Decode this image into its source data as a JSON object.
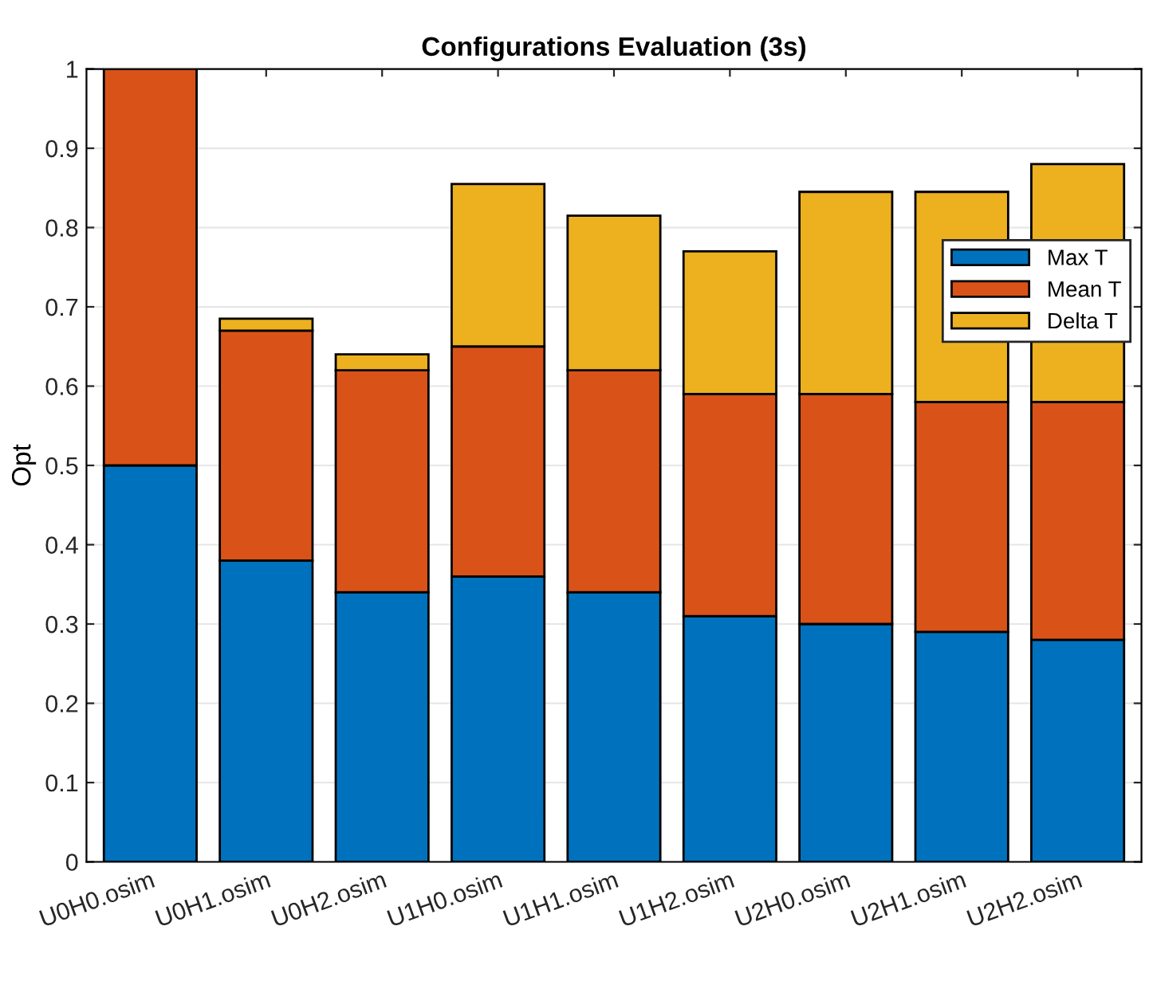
{
  "chart_data": {
    "type": "bar",
    "title": "Configurations Evaluation (3s)",
    "ylabel": "Opt",
    "categories": [
      "U0H0.osim",
      "U0H1.osim",
      "U0H2.osim",
      "U1H0.osim",
      "U1H1.osim",
      "U1H2.osim",
      "U2H0.osim",
      "U2H1.osim",
      "U2H2.osim"
    ],
    "stacked": true,
    "series": [
      {
        "name": "Max T",
        "color": "#0072bd",
        "values": [
          0.5,
          0.38,
          0.34,
          0.36,
          0.34,
          0.31,
          0.3,
          0.29,
          0.28
        ]
      },
      {
        "name": "Mean T",
        "color": "#d95319",
        "values": [
          0.5,
          0.29,
          0.28,
          0.29,
          0.28,
          0.28,
          0.29,
          0.29,
          0.3
        ]
      },
      {
        "name": "Delta T",
        "color": "#edb120",
        "values": [
          null,
          0.015,
          0.02,
          0.205,
          0.195,
          0.18,
          0.255,
          0.265,
          0.3
        ]
      }
    ],
    "ylim": [
      0,
      1
    ],
    "yticks": [
      0,
      0.1,
      0.2,
      0.3,
      0.4,
      0.5,
      0.6,
      0.7,
      0.8,
      0.9,
      1
    ],
    "grid": "y",
    "legend": "right"
  }
}
